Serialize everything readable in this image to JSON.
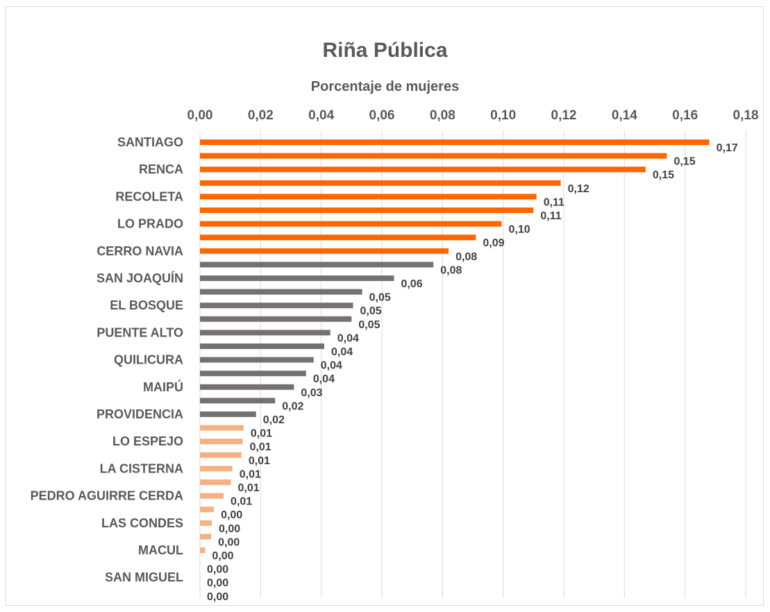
{
  "chart_data": {
    "type": "bar",
    "orientation": "horizontal",
    "title": "Riña Pública",
    "xlabel": "Porcentaje de mujeres",
    "ylabel": "",
    "xlim": [
      0,
      0.18
    ],
    "x_ticks": [
      "0,00",
      "0,02",
      "0,04",
      "0,06",
      "0,08",
      "0,10",
      "0,12",
      "0,14",
      "0,16",
      "0,18"
    ],
    "axis_position": "top",
    "grid": "vertical",
    "legend": "none",
    "colors": {
      "high": "#ff6600",
      "mid": "#767171",
      "low": "#f4b183",
      "grid": "#d9d9d9",
      "text": "#595959"
    },
    "bars": [
      {
        "category": "SANTIAGO",
        "value": 0.168,
        "label": "0,17",
        "group": "high"
      },
      {
        "category": "",
        "value": 0.154,
        "label": "0,15",
        "group": "high"
      },
      {
        "category": "RENCA",
        "value": 0.147,
        "label": "0,15",
        "group": "high"
      },
      {
        "category": "",
        "value": 0.119,
        "label": "0,12",
        "group": "high"
      },
      {
        "category": "RECOLETA",
        "value": 0.111,
        "label": "0,11",
        "group": "high"
      },
      {
        "category": "",
        "value": 0.11,
        "label": "0,11",
        "group": "high"
      },
      {
        "category": "LO PRADO",
        "value": 0.0995,
        "label": "0,10",
        "group": "high"
      },
      {
        "category": "",
        "value": 0.091,
        "label": "0,09",
        "group": "high"
      },
      {
        "category": "CERRO NAVIA",
        "value": 0.082,
        "label": "0,08",
        "group": "high"
      },
      {
        "category": "",
        "value": 0.077,
        "label": "0,08",
        "group": "mid"
      },
      {
        "category": "SAN JOAQUÍN",
        "value": 0.064,
        "label": "0,06",
        "group": "mid"
      },
      {
        "category": "",
        "value": 0.0535,
        "label": "0,05",
        "group": "mid"
      },
      {
        "category": "EL BOSQUE",
        "value": 0.0505,
        "label": "0,05",
        "group": "mid"
      },
      {
        "category": "",
        "value": 0.05,
        "label": "0,05",
        "group": "mid"
      },
      {
        "category": "PUENTE ALTO",
        "value": 0.043,
        "label": "0,04",
        "group": "mid"
      },
      {
        "category": "",
        "value": 0.041,
        "label": "0,04",
        "group": "mid"
      },
      {
        "category": "QUILICURA",
        "value": 0.0375,
        "label": "0,04",
        "group": "mid"
      },
      {
        "category": "",
        "value": 0.035,
        "label": "0,04",
        "group": "mid"
      },
      {
        "category": "MAIPÚ",
        "value": 0.031,
        "label": "0,03",
        "group": "mid"
      },
      {
        "category": "",
        "value": 0.0248,
        "label": "0,02",
        "group": "mid"
      },
      {
        "category": "PROVIDENCIA",
        "value": 0.0185,
        "label": "0,02",
        "group": "mid"
      },
      {
        "category": "",
        "value": 0.0144,
        "label": "0,01",
        "group": "low"
      },
      {
        "category": "LO ESPEJO",
        "value": 0.0141,
        "label": "0,01",
        "group": "low"
      },
      {
        "category": "",
        "value": 0.0137,
        "label": "0,01",
        "group": "low"
      },
      {
        "category": "LA CISTERNA",
        "value": 0.0107,
        "label": "0,01",
        "group": "low"
      },
      {
        "category": "",
        "value": 0.0102,
        "label": "0,01",
        "group": "low"
      },
      {
        "category": "PEDRO AGUIRRE CERDA",
        "value": 0.0078,
        "label": "0,01",
        "group": "low"
      },
      {
        "category": "",
        "value": 0.0046,
        "label": "0,00",
        "group": "low"
      },
      {
        "category": "LAS CONDES",
        "value": 0.0039,
        "label": "0,00",
        "group": "low"
      },
      {
        "category": "",
        "value": 0.0037,
        "label": "0,00",
        "group": "low"
      },
      {
        "category": "MACUL",
        "value": 0.0017,
        "label": "0,00",
        "group": "low"
      },
      {
        "category": "",
        "value": 0,
        "label": "0,00",
        "group": "low"
      },
      {
        "category": "SAN MIGUEL",
        "value": 0,
        "label": "0,00",
        "group": "low"
      },
      {
        "category": "",
        "value": 0,
        "label": "0,00",
        "group": "low"
      }
    ]
  }
}
